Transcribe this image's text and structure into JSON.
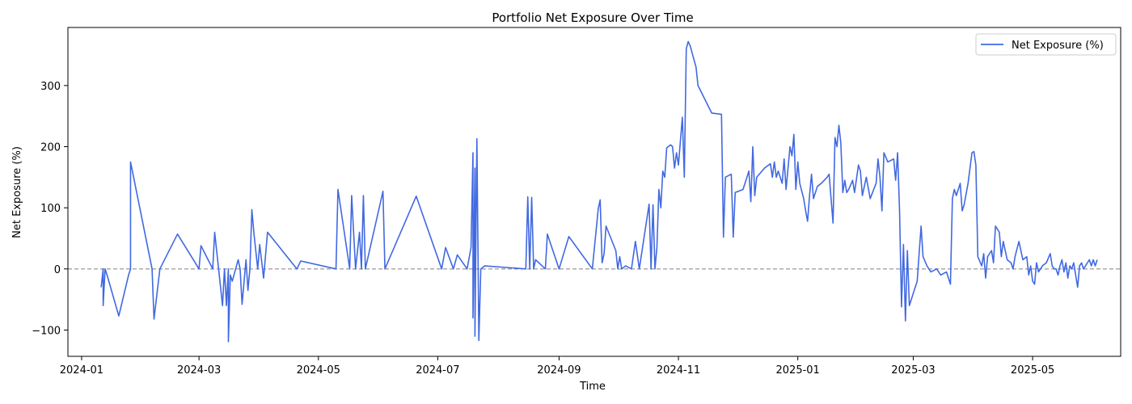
{
  "chart_data": {
    "type": "line",
    "title": "Portfolio Net Exposure Over Time",
    "xlabel": "Time",
    "ylabel": "Net Exposure (%)",
    "xlim": [
      "2023-12-25",
      "2025-06-15"
    ],
    "ylim": [
      -143,
      395
    ],
    "x_ticks": [
      "2024-01",
      "2024-03",
      "2024-05",
      "2024-07",
      "2024-09",
      "2024-11",
      "2025-01",
      "2025-03",
      "2025-05"
    ],
    "y_ticks": [
      -100,
      0,
      100,
      200,
      300
    ],
    "grid": false,
    "legend": {
      "location": "top-right",
      "entries": [
        "Net Exposure (%)"
      ]
    },
    "reference_line": {
      "y": 0,
      "style": "dashed",
      "color": "#808080"
    },
    "series": [
      {
        "name": "Net Exposure (%)",
        "color": "#4169e1",
        "points": [
          [
            "2024-01-11",
            -30
          ],
          [
            "2024-01-12",
            0
          ],
          [
            "2024-01-12",
            -60
          ],
          [
            "2024-01-13",
            0
          ],
          [
            "2024-01-14",
            -10
          ],
          [
            "2024-01-20",
            -77
          ],
          [
            "2024-01-25",
            -10
          ],
          [
            "2024-01-26",
            0
          ],
          [
            "2024-01-26",
            175
          ],
          [
            "2024-02-06",
            0
          ],
          [
            "2024-02-07",
            -82
          ],
          [
            "2024-02-10",
            0
          ],
          [
            "2024-02-19",
            57
          ],
          [
            "2024-03-01",
            0
          ],
          [
            "2024-03-02",
            38
          ],
          [
            "2024-03-08",
            0
          ],
          [
            "2024-03-09",
            60
          ],
          [
            "2024-03-13",
            -60
          ],
          [
            "2024-03-14",
            0
          ],
          [
            "2024-03-15",
            -60
          ],
          [
            "2024-03-16",
            0
          ],
          [
            "2024-03-16",
            -119
          ],
          [
            "2024-03-17",
            -10
          ],
          [
            "2024-03-18",
            -20
          ],
          [
            "2024-03-21",
            15
          ],
          [
            "2024-03-22",
            0
          ],
          [
            "2024-03-23",
            -58
          ],
          [
            "2024-03-25",
            15
          ],
          [
            "2024-03-26",
            -35
          ],
          [
            "2024-03-27",
            0
          ],
          [
            "2024-03-28",
            97
          ],
          [
            "2024-03-29",
            60
          ],
          [
            "2024-03-31",
            0
          ],
          [
            "2024-04-01",
            40
          ],
          [
            "2024-04-03",
            -15
          ],
          [
            "2024-04-05",
            60
          ],
          [
            "2024-04-10",
            40
          ],
          [
            "2024-04-20",
            0
          ],
          [
            "2024-04-22",
            13
          ],
          [
            "2024-05-10",
            0
          ],
          [
            "2024-05-11",
            130
          ],
          [
            "2024-05-17",
            0
          ],
          [
            "2024-05-18",
            120
          ],
          [
            "2024-05-20",
            0
          ],
          [
            "2024-05-22",
            60
          ],
          [
            "2024-05-23",
            0
          ],
          [
            "2024-05-24",
            120
          ],
          [
            "2024-05-25",
            0
          ],
          [
            "2024-06-03",
            127
          ],
          [
            "2024-06-04",
            0
          ],
          [
            "2024-06-20",
            119
          ],
          [
            "2024-07-03",
            0
          ],
          [
            "2024-07-05",
            35
          ],
          [
            "2024-07-09",
            0
          ],
          [
            "2024-07-11",
            23
          ],
          [
            "2024-07-16",
            0
          ],
          [
            "2024-07-18",
            35
          ],
          [
            "2024-07-19",
            190
          ],
          [
            "2024-07-19",
            -80
          ],
          [
            "2024-07-20",
            165
          ],
          [
            "2024-07-20",
            -110
          ],
          [
            "2024-07-21",
            213
          ],
          [
            "2024-07-22",
            -117
          ],
          [
            "2024-07-23",
            0
          ],
          [
            "2024-07-25",
            5
          ],
          [
            "2024-08-15",
            0
          ],
          [
            "2024-08-16",
            118
          ],
          [
            "2024-08-17",
            0
          ],
          [
            "2024-08-18",
            117
          ],
          [
            "2024-08-19",
            0
          ],
          [
            "2024-08-20",
            15
          ],
          [
            "2024-08-25",
            0
          ],
          [
            "2024-08-26",
            57
          ],
          [
            "2024-09-01",
            0
          ],
          [
            "2024-09-06",
            53
          ],
          [
            "2024-09-18",
            0
          ],
          [
            "2024-09-21",
            98
          ],
          [
            "2024-09-22",
            113
          ],
          [
            "2024-09-23",
            10
          ],
          [
            "2024-09-24",
            25
          ],
          [
            "2024-09-25",
            70
          ],
          [
            "2024-09-30",
            30
          ],
          [
            "2024-10-01",
            0
          ],
          [
            "2024-10-02",
            20
          ],
          [
            "2024-10-03",
            0
          ],
          [
            "2024-10-05",
            5
          ],
          [
            "2024-10-08",
            0
          ],
          [
            "2024-10-10",
            45
          ],
          [
            "2024-10-12",
            0
          ],
          [
            "2024-10-17",
            106
          ],
          [
            "2024-10-18",
            0
          ],
          [
            "2024-10-19",
            105
          ],
          [
            "2024-10-20",
            0
          ],
          [
            "2024-10-21",
            35
          ],
          [
            "2024-10-22",
            130
          ],
          [
            "2024-10-23",
            100
          ],
          [
            "2024-10-24",
            160
          ],
          [
            "2024-10-25",
            150
          ],
          [
            "2024-10-26",
            198
          ],
          [
            "2024-10-28",
            203
          ],
          [
            "2024-10-29",
            200
          ],
          [
            "2024-10-30",
            165
          ],
          [
            "2024-10-31",
            190
          ],
          [
            "2024-11-01",
            170
          ],
          [
            "2024-11-03",
            248
          ],
          [
            "2024-11-04",
            150
          ],
          [
            "2024-11-05",
            360
          ],
          [
            "2024-11-06",
            372
          ],
          [
            "2024-11-07",
            365
          ],
          [
            "2024-11-10",
            330
          ],
          [
            "2024-11-11",
            300
          ],
          [
            "2024-11-18",
            255
          ],
          [
            "2024-11-23",
            253
          ],
          [
            "2024-11-24",
            52
          ],
          [
            "2024-11-25",
            150
          ],
          [
            "2024-11-28",
            155
          ],
          [
            "2024-11-29",
            52
          ],
          [
            "2024-11-30",
            125
          ],
          [
            "2024-12-04",
            130
          ],
          [
            "2024-12-07",
            160
          ],
          [
            "2024-12-08",
            110
          ],
          [
            "2024-12-09",
            200
          ],
          [
            "2024-12-10",
            120
          ],
          [
            "2024-12-11",
            150
          ],
          [
            "2024-12-15",
            165
          ],
          [
            "2024-12-18",
            172
          ],
          [
            "2024-12-19",
            150
          ],
          [
            "2024-12-20",
            175
          ],
          [
            "2024-12-21",
            150
          ],
          [
            "2024-12-22",
            160
          ],
          [
            "2024-12-24",
            140
          ],
          [
            "2024-12-25",
            180
          ],
          [
            "2024-12-26",
            130
          ],
          [
            "2024-12-28",
            200
          ],
          [
            "2024-12-29",
            185
          ],
          [
            "2024-12-30",
            220
          ],
          [
            "2024-12-31",
            130
          ],
          [
            "2025-01-01",
            175
          ],
          [
            "2025-01-02",
            140
          ],
          [
            "2025-01-04",
            115
          ],
          [
            "2025-01-05",
            95
          ],
          [
            "2025-01-06",
            78
          ],
          [
            "2025-01-07",
            120
          ],
          [
            "2025-01-08",
            155
          ],
          [
            "2025-01-09",
            115
          ],
          [
            "2025-01-11",
            135
          ],
          [
            "2025-01-13",
            140
          ],
          [
            "2025-01-16",
            150
          ],
          [
            "2025-01-17",
            155
          ],
          [
            "2025-01-18",
            115
          ],
          [
            "2025-01-19",
            75
          ],
          [
            "2025-01-20",
            215
          ],
          [
            "2025-01-21",
            200
          ],
          [
            "2025-01-22",
            235
          ],
          [
            "2025-01-23",
            205
          ],
          [
            "2025-01-24",
            125
          ],
          [
            "2025-01-25",
            145
          ],
          [
            "2025-01-26",
            125
          ],
          [
            "2025-01-27",
            130
          ],
          [
            "2025-01-29",
            145
          ],
          [
            "2025-01-30",
            125
          ],
          [
            "2025-02-01",
            170
          ],
          [
            "2025-02-02",
            160
          ],
          [
            "2025-02-03",
            120
          ],
          [
            "2025-02-05",
            150
          ],
          [
            "2025-02-07",
            115
          ],
          [
            "2025-02-10",
            140
          ],
          [
            "2025-02-11",
            180
          ],
          [
            "2025-02-12",
            150
          ],
          [
            "2025-02-13",
            95
          ],
          [
            "2025-02-14",
            190
          ],
          [
            "2025-02-16",
            175
          ],
          [
            "2025-02-19",
            180
          ],
          [
            "2025-02-20",
            145
          ],
          [
            "2025-02-21",
            190
          ],
          [
            "2025-02-22",
            95
          ],
          [
            "2025-02-23",
            -62
          ],
          [
            "2025-02-24",
            40
          ],
          [
            "2025-02-25",
            -85
          ],
          [
            "2025-02-26",
            30
          ],
          [
            "2025-02-27",
            -60
          ],
          [
            "2025-03-01",
            -40
          ],
          [
            "2025-03-03",
            -20
          ],
          [
            "2025-03-05",
            70
          ],
          [
            "2025-03-06",
            20
          ],
          [
            "2025-03-08",
            5
          ],
          [
            "2025-03-10",
            -5
          ],
          [
            "2025-03-13",
            0
          ],
          [
            "2025-03-15",
            -10
          ],
          [
            "2025-03-18",
            -5
          ],
          [
            "2025-03-20",
            -25
          ],
          [
            "2025-03-21",
            115
          ],
          [
            "2025-03-22",
            130
          ],
          [
            "2025-03-23",
            120
          ],
          [
            "2025-03-25",
            140
          ],
          [
            "2025-03-26",
            95
          ],
          [
            "2025-03-27",
            105
          ],
          [
            "2025-03-29",
            140
          ],
          [
            "2025-03-31",
            190
          ],
          [
            "2025-04-01",
            192
          ],
          [
            "2025-04-02",
            170
          ],
          [
            "2025-04-03",
            20
          ],
          [
            "2025-04-05",
            5
          ],
          [
            "2025-04-06",
            25
          ],
          [
            "2025-04-07",
            -15
          ],
          [
            "2025-04-08",
            20
          ],
          [
            "2025-04-10",
            30
          ],
          [
            "2025-04-11",
            10
          ],
          [
            "2025-04-12",
            70
          ],
          [
            "2025-04-14",
            60
          ],
          [
            "2025-04-15",
            20
          ],
          [
            "2025-04-16",
            45
          ],
          [
            "2025-04-18",
            15
          ],
          [
            "2025-04-20",
            10
          ],
          [
            "2025-04-21",
            0
          ],
          [
            "2025-04-22",
            20
          ],
          [
            "2025-04-24",
            45
          ],
          [
            "2025-04-26",
            15
          ],
          [
            "2025-04-28",
            20
          ],
          [
            "2025-04-29",
            -10
          ],
          [
            "2025-04-30",
            5
          ],
          [
            "2025-05-01",
            -20
          ],
          [
            "2025-05-02",
            -25
          ],
          [
            "2025-05-03",
            10
          ],
          [
            "2025-05-04",
            -5
          ],
          [
            "2025-05-06",
            5
          ],
          [
            "2025-05-08",
            10
          ],
          [
            "2025-05-10",
            25
          ],
          [
            "2025-05-11",
            5
          ],
          [
            "2025-05-12",
            0
          ],
          [
            "2025-05-13",
            0
          ],
          [
            "2025-05-14",
            -10
          ],
          [
            "2025-05-15",
            5
          ],
          [
            "2025-05-16",
            15
          ],
          [
            "2025-05-17",
            -5
          ],
          [
            "2025-05-18",
            10
          ],
          [
            "2025-05-19",
            -15
          ],
          [
            "2025-05-20",
            5
          ],
          [
            "2025-05-21",
            0
          ],
          [
            "2025-05-22",
            10
          ],
          [
            "2025-05-23",
            -10
          ],
          [
            "2025-05-24",
            -30
          ],
          [
            "2025-05-25",
            5
          ],
          [
            "2025-05-26",
            10
          ],
          [
            "2025-05-27",
            0
          ],
          [
            "2025-05-28",
            5
          ],
          [
            "2025-05-29",
            10
          ],
          [
            "2025-05-30",
            15
          ],
          [
            "2025-05-31",
            5
          ],
          [
            "2025-06-01",
            15
          ],
          [
            "2025-06-02",
            5
          ],
          [
            "2025-06-03",
            15
          ]
        ]
      }
    ]
  }
}
